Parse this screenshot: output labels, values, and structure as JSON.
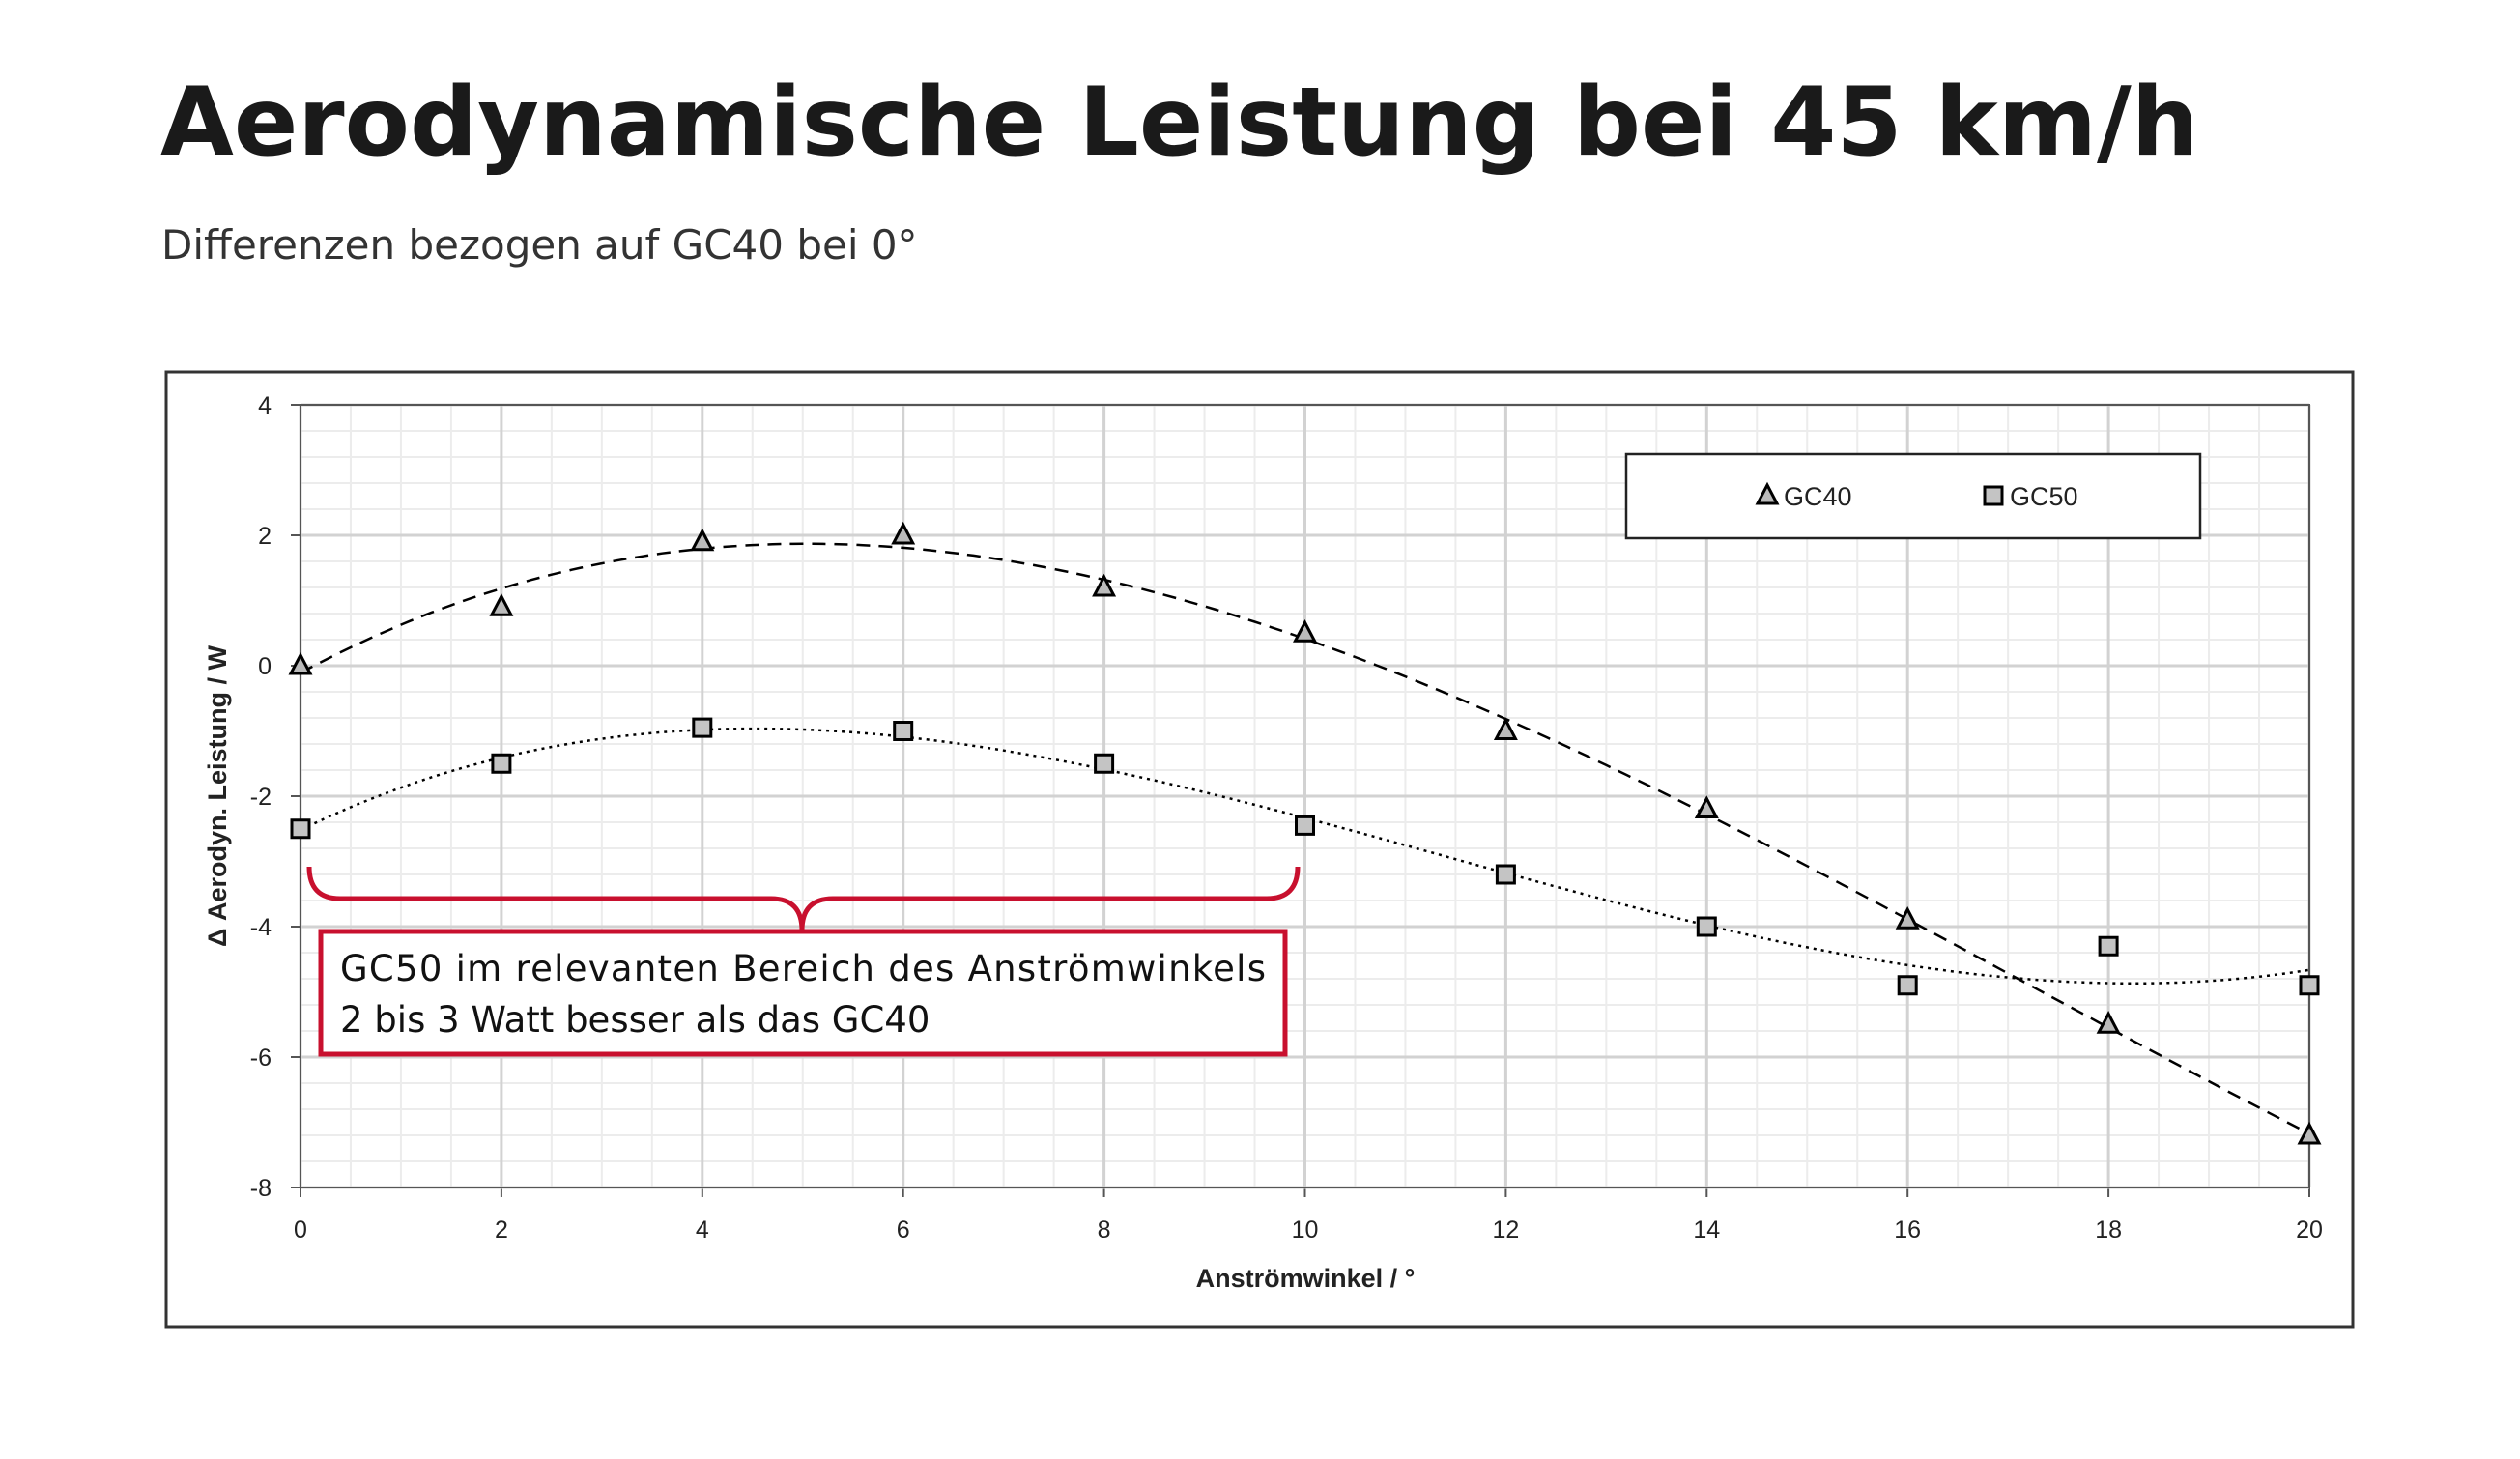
{
  "chart_data": {
    "type": "scatter",
    "title": "Aerodynamische Leistung bei 45 km/h",
    "subtitle": "Differenzen bezogen auf GC40 bei 0°",
    "x_label": "Anströmwinkel / °",
    "y_label": "Δ Aerodyn. Leistung / W",
    "x": [
      0,
      2,
      4,
      6,
      8,
      10,
      12,
      14,
      16,
      18,
      20
    ],
    "series": [
      {
        "name": "GC40",
        "color": "#000000",
        "marker": "triangle",
        "trendline": "dashed",
        "values": [
          0,
          0.9,
          1.9,
          2.0,
          1.2,
          0.5,
          -1.0,
          -2.2,
          -3.9,
          -5.5,
          -7.2
        ]
      },
      {
        "name": "GC50",
        "color": "#000000",
        "marker": "square",
        "trendline": "dotted",
        "values": [
          -2.5,
          -1.5,
          -0.95,
          -1.0,
          -1.5,
          -2.45,
          -3.2,
          -4.0,
          -4.9,
          -4.3,
          -4.9
        ]
      }
    ],
    "xlim": [
      0,
      20
    ],
    "xticks": [
      0,
      2,
      4,
      6,
      8,
      10,
      12,
      14,
      16,
      18,
      20
    ],
    "ylim": [
      -8,
      4
    ],
    "yticks": [
      -8,
      -6,
      -4,
      -2,
      0,
      2,
      4
    ],
    "grid": true,
    "minor_grid": true,
    "legend": "upper right",
    "annotation": {
      "lines": [
        "GC50 im relevanten Bereich des Anströmwinkels",
        "2 bis 3 Watt besser als das GC40"
      ],
      "color": "#c8102e"
    }
  }
}
